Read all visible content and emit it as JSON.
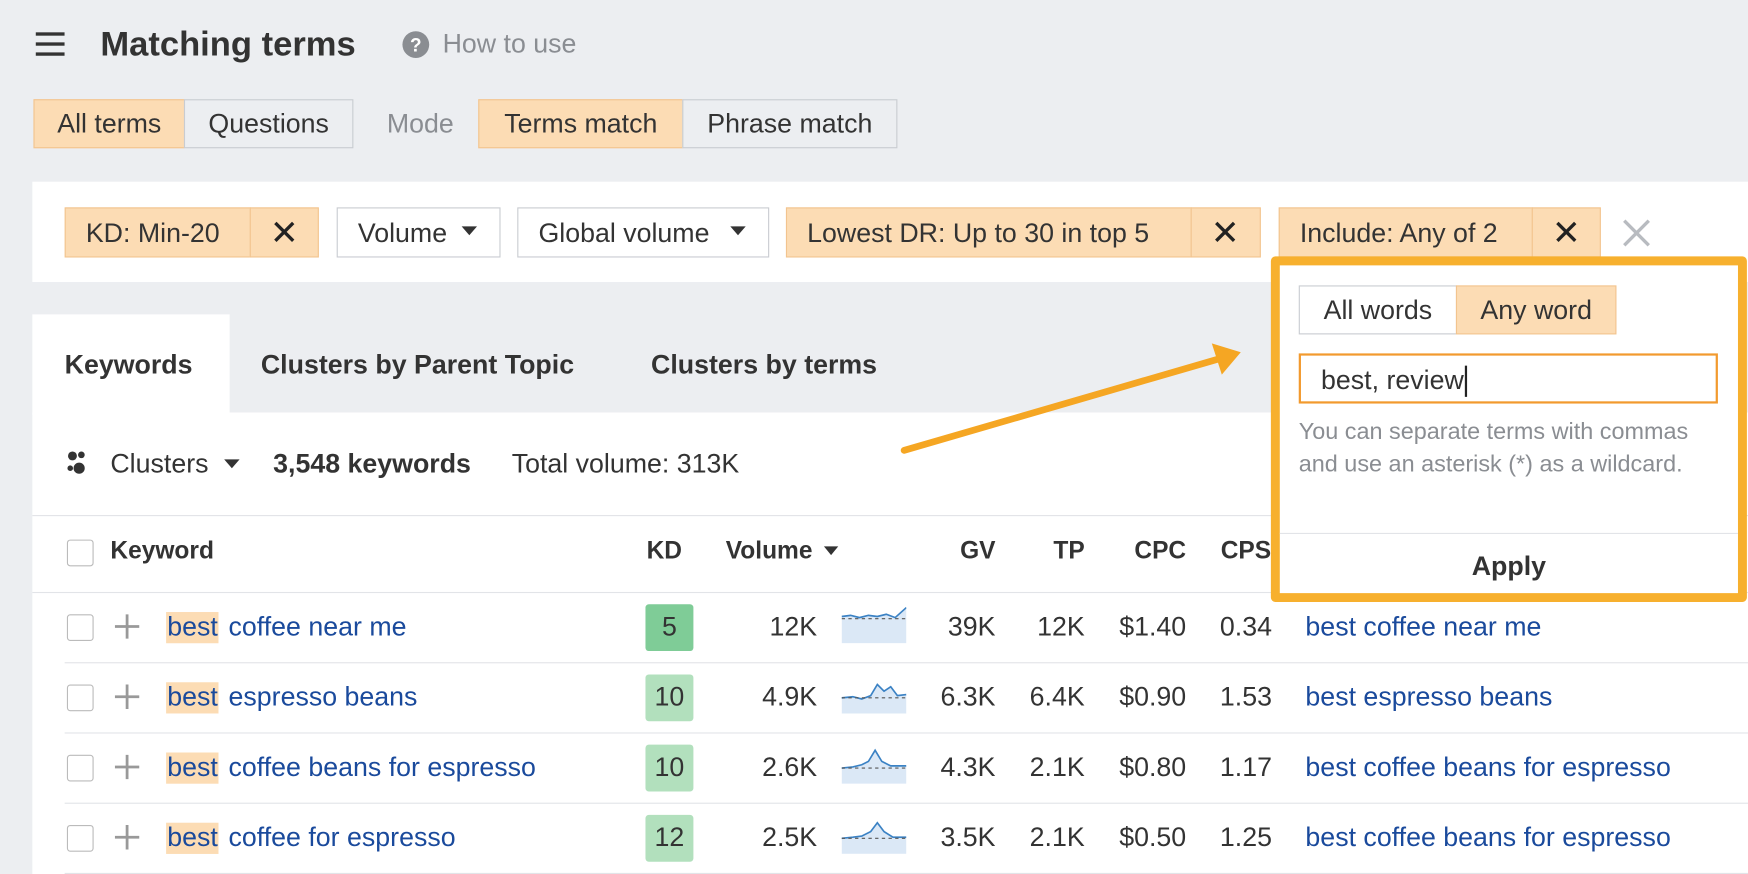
{
  "header": {
    "title": "Matching terms",
    "help": "How to use"
  },
  "scope_tabs": [
    "All terms",
    "Questions"
  ],
  "mode_label": "Mode",
  "mode_tabs": [
    "Terms match",
    "Phrase match"
  ],
  "filters": [
    {
      "label": "KD: Min-20"
    },
    {
      "label": "Volume"
    },
    {
      "label": "Global volume"
    },
    {
      "label": "Lowest DR: Up to 30 in top 5"
    },
    {
      "label": "Include: Any of 2"
    }
  ],
  "popover": {
    "toggle": [
      "All words",
      "Any word"
    ],
    "input": "best, review",
    "hint": "You can separate terms with commas and use an asterisk (*) as a wildcard.",
    "apply": "Apply"
  },
  "result_tabs": [
    "Keywords",
    "Clusters by Parent Topic",
    "Clusters by terms"
  ],
  "summary": {
    "clusters": "Clusters",
    "count": "3,548 keywords",
    "total": "Total volume: 313K"
  },
  "table": {
    "headers": [
      "Keyword",
      "KD",
      "Volume",
      "GV",
      "TP",
      "CPC",
      "CPS"
    ],
    "rows": [
      {
        "highlight": "best",
        "rest": "coffee near me",
        "kd": "5",
        "volume": "12K",
        "gv": "39K",
        "tp": "12K",
        "cpc": "$1.40",
        "cps": "0.34",
        "parent": "best coffee near me"
      },
      {
        "highlight": "best",
        "rest": "espresso beans",
        "kd": "10",
        "volume": "4.9K",
        "gv": "6.3K",
        "tp": "6.4K",
        "cpc": "$0.90",
        "cps": "1.53",
        "parent": "best espresso beans"
      },
      {
        "highlight": "best",
        "rest": "coffee beans for espresso",
        "kd": "10",
        "volume": "2.6K",
        "gv": "4.3K",
        "tp": "2.1K",
        "cpc": "$0.80",
        "cps": "1.17",
        "parent": "best coffee beans for espresso"
      },
      {
        "highlight": "best",
        "rest": "coffee for espresso",
        "kd": "12",
        "volume": "2.5K",
        "gv": "3.5K",
        "tp": "2.1K",
        "cpc": "$0.50",
        "cps": "1.25",
        "parent": "best coffee beans for espresso"
      }
    ]
  }
}
